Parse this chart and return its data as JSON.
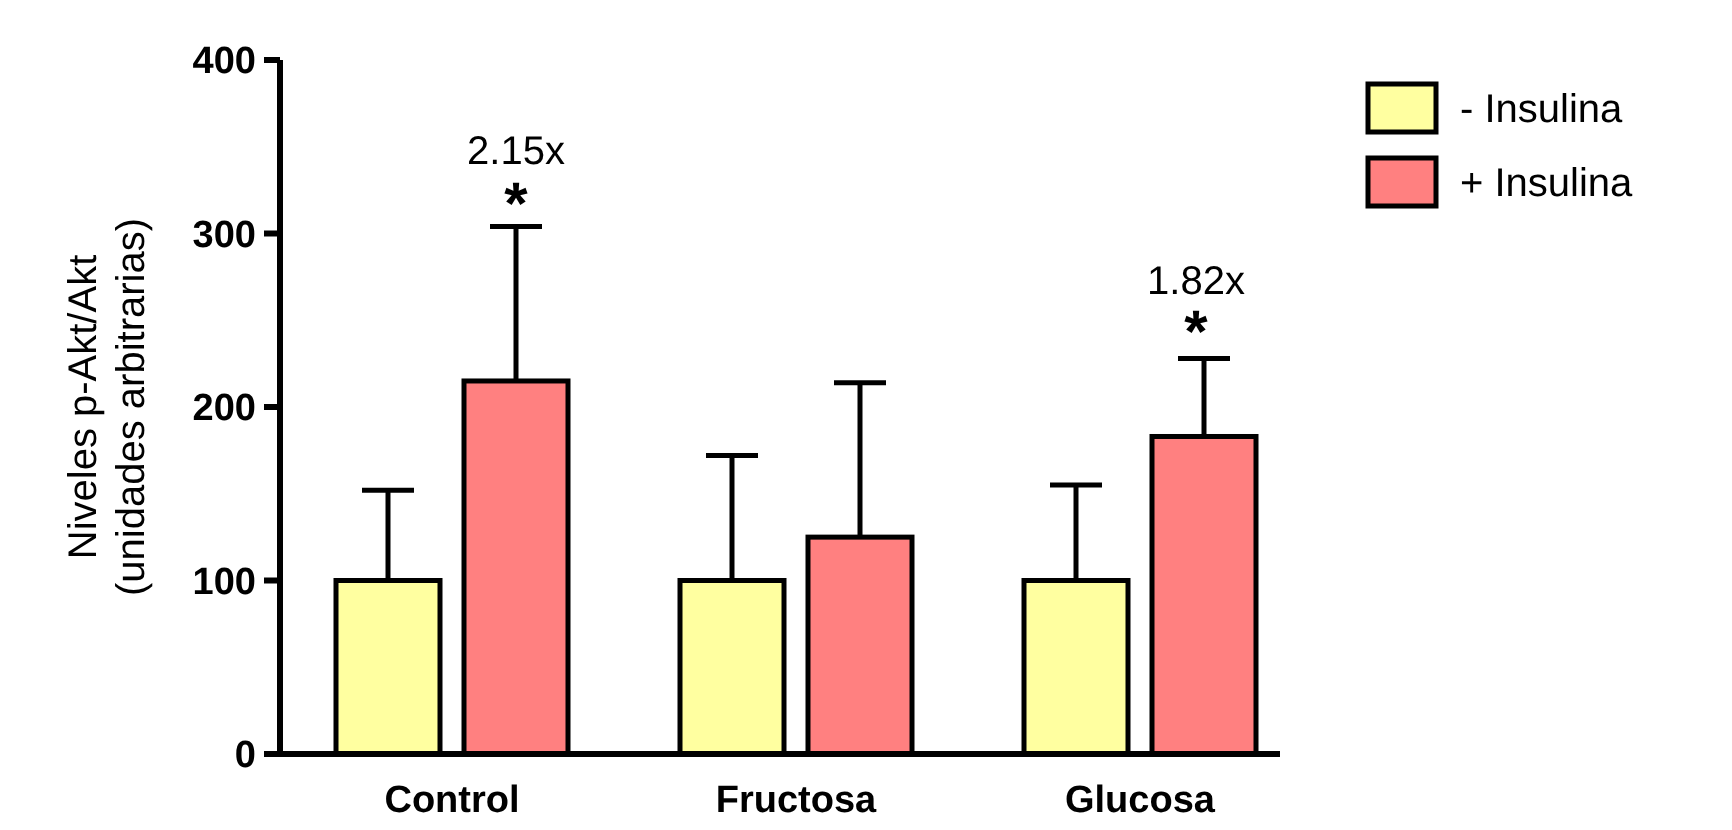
{
  "chart_data": {
    "type": "bar",
    "ylabel": "Niveles p-Akt/Akt\n(unidades arbitrarias)",
    "categories": [
      "Control",
      "Fructosa",
      "Glucosa"
    ],
    "series": [
      {
        "name": "- Insulina",
        "color": "#ffffa0",
        "values": [
          100,
          100,
          100
        ],
        "errors": [
          [
            100,
            152
          ],
          [
            100,
            172
          ],
          [
            100,
            155
          ]
        ]
      },
      {
        "name": "+ Insulina",
        "color": "#ff8080",
        "values": [
          215,
          125,
          183
        ],
        "errors": [
          [
            215,
            304
          ],
          [
            125,
            214
          ],
          [
            183,
            228
          ]
        ]
      }
    ],
    "ylim": [
      0,
      400
    ],
    "yticks": [
      0,
      100,
      200,
      300,
      400
    ],
    "grid": false,
    "legend": "top right",
    "annotations": [
      "2.15x",
      "*",
      "1.82x",
      "*"
    ]
  }
}
